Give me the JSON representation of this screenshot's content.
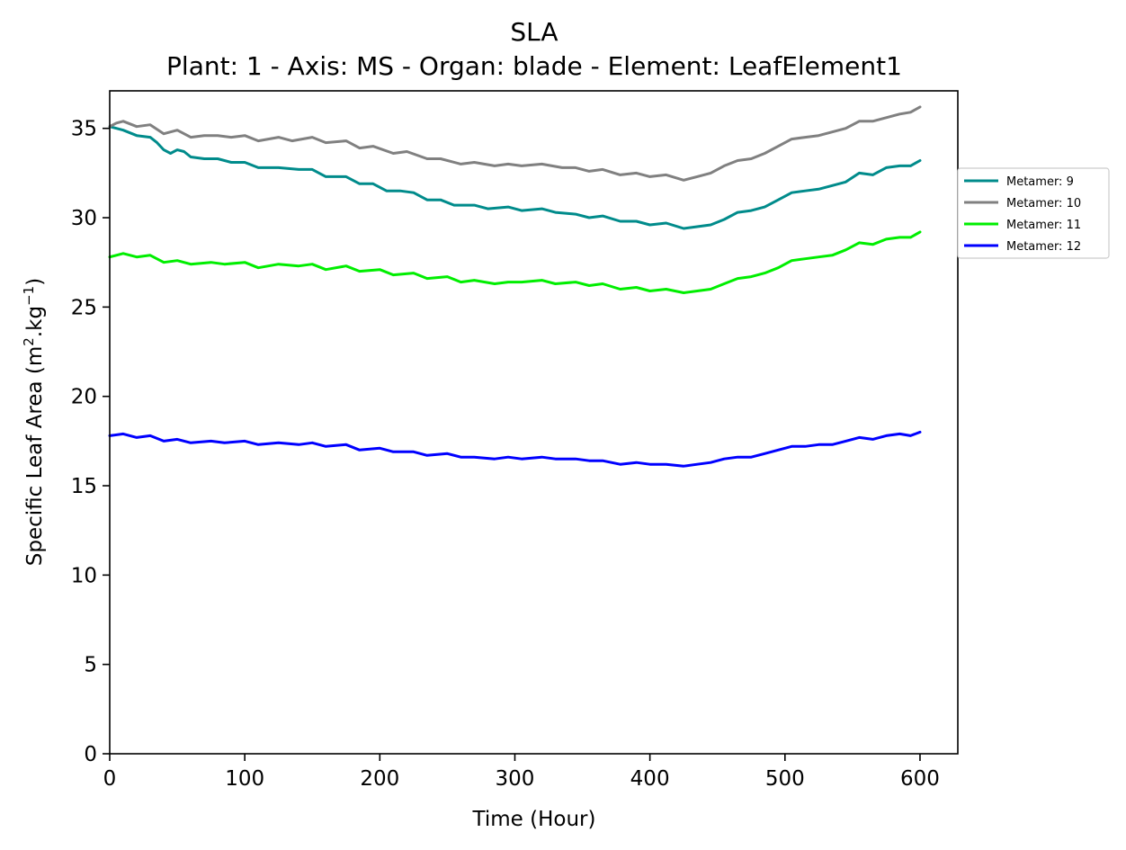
{
  "chart_data": {
    "type": "line",
    "title": "SLA",
    "subtitle": "Plant: 1 - Axis: MS - Organ: blade - Element: LeafElement1",
    "xlabel": "Time (Hour)",
    "ylabel_main": "Specific Leaf Area (m",
    "ylabel_sup1": "2",
    "ylabel_mid": ".kg",
    "ylabel_sup2": "−1",
    "ylabel_end": ")",
    "xlim": [
      0,
      628
    ],
    "ylim": [
      0,
      37.1
    ],
    "xticks": [
      0,
      100,
      200,
      300,
      400,
      500,
      600
    ],
    "yticks": [
      0,
      5,
      10,
      15,
      20,
      25,
      30,
      35
    ],
    "grid": false,
    "legend_position": "right",
    "series": [
      {
        "name": "Metamer: 9",
        "color": "#008b8b",
        "points": [
          [
            0,
            35.1
          ],
          [
            5,
            35.0
          ],
          [
            10,
            34.9
          ],
          [
            20,
            34.6
          ],
          [
            30,
            34.5
          ],
          [
            35,
            34.2
          ],
          [
            40,
            33.8
          ],
          [
            45,
            33.6
          ],
          [
            50,
            33.8
          ],
          [
            55,
            33.7
          ],
          [
            60,
            33.4
          ],
          [
            70,
            33.3
          ],
          [
            80,
            33.3
          ],
          [
            90,
            33.1
          ],
          [
            100,
            33.1
          ],
          [
            110,
            32.8
          ],
          [
            125,
            32.8
          ],
          [
            140,
            32.7
          ],
          [
            150,
            32.7
          ],
          [
            160,
            32.3
          ],
          [
            175,
            32.3
          ],
          [
            185,
            31.9
          ],
          [
            195,
            31.9
          ],
          [
            205,
            31.5
          ],
          [
            215,
            31.5
          ],
          [
            225,
            31.4
          ],
          [
            235,
            31.0
          ],
          [
            245,
            31.0
          ],
          [
            255,
            30.7
          ],
          [
            270,
            30.7
          ],
          [
            280,
            30.5
          ],
          [
            295,
            30.6
          ],
          [
            305,
            30.4
          ],
          [
            320,
            30.5
          ],
          [
            330,
            30.3
          ],
          [
            345,
            30.2
          ],
          [
            355,
            30.0
          ],
          [
            365,
            30.1
          ],
          [
            378,
            29.8
          ],
          [
            390,
            29.8
          ],
          [
            400,
            29.6
          ],
          [
            412,
            29.7
          ],
          [
            425,
            29.4
          ],
          [
            435,
            29.5
          ],
          [
            445,
            29.6
          ],
          [
            455,
            29.9
          ],
          [
            465,
            30.3
          ],
          [
            475,
            30.4
          ],
          [
            485,
            30.6
          ],
          [
            495,
            31.0
          ],
          [
            505,
            31.4
          ],
          [
            515,
            31.5
          ],
          [
            525,
            31.6
          ],
          [
            535,
            31.8
          ],
          [
            545,
            32.0
          ],
          [
            555,
            32.5
          ],
          [
            565,
            32.4
          ],
          [
            575,
            32.8
          ],
          [
            585,
            32.9
          ],
          [
            593,
            32.9
          ],
          [
            600,
            33.2
          ]
        ]
      },
      {
        "name": "Metamer: 10",
        "color": "#808080",
        "points": [
          [
            0,
            35.1
          ],
          [
            5,
            35.3
          ],
          [
            10,
            35.4
          ],
          [
            20,
            35.1
          ],
          [
            30,
            35.2
          ],
          [
            40,
            34.7
          ],
          [
            50,
            34.9
          ],
          [
            60,
            34.5
          ],
          [
            70,
            34.6
          ],
          [
            80,
            34.6
          ],
          [
            90,
            34.5
          ],
          [
            100,
            34.6
          ],
          [
            110,
            34.3
          ],
          [
            125,
            34.5
          ],
          [
            135,
            34.3
          ],
          [
            150,
            34.5
          ],
          [
            160,
            34.2
          ],
          [
            175,
            34.3
          ],
          [
            185,
            33.9
          ],
          [
            195,
            34.0
          ],
          [
            210,
            33.6
          ],
          [
            220,
            33.7
          ],
          [
            235,
            33.3
          ],
          [
            245,
            33.3
          ],
          [
            260,
            33.0
          ],
          [
            270,
            33.1
          ],
          [
            285,
            32.9
          ],
          [
            295,
            33.0
          ],
          [
            305,
            32.9
          ],
          [
            320,
            33.0
          ],
          [
            335,
            32.8
          ],
          [
            345,
            32.8
          ],
          [
            355,
            32.6
          ],
          [
            365,
            32.7
          ],
          [
            378,
            32.4
          ],
          [
            390,
            32.5
          ],
          [
            400,
            32.3
          ],
          [
            412,
            32.4
          ],
          [
            425,
            32.1
          ],
          [
            435,
            32.3
          ],
          [
            445,
            32.5
          ],
          [
            455,
            32.9
          ],
          [
            465,
            33.2
          ],
          [
            475,
            33.3
          ],
          [
            485,
            33.6
          ],
          [
            495,
            34.0
          ],
          [
            505,
            34.4
          ],
          [
            515,
            34.5
          ],
          [
            525,
            34.6
          ],
          [
            535,
            34.8
          ],
          [
            545,
            35.0
          ],
          [
            555,
            35.4
          ],
          [
            565,
            35.4
          ],
          [
            575,
            35.6
          ],
          [
            585,
            35.8
          ],
          [
            593,
            35.9
          ],
          [
            600,
            36.2
          ]
        ]
      },
      {
        "name": "Metamer: 11",
        "color": "#00ee00",
        "points": [
          [
            0,
            27.8
          ],
          [
            10,
            28.0
          ],
          [
            20,
            27.8
          ],
          [
            30,
            27.9
          ],
          [
            40,
            27.5
          ],
          [
            50,
            27.6
          ],
          [
            60,
            27.4
          ],
          [
            75,
            27.5
          ],
          [
            85,
            27.4
          ],
          [
            100,
            27.5
          ],
          [
            110,
            27.2
          ],
          [
            125,
            27.4
          ],
          [
            140,
            27.3
          ],
          [
            150,
            27.4
          ],
          [
            160,
            27.1
          ],
          [
            175,
            27.3
          ],
          [
            185,
            27.0
          ],
          [
            200,
            27.1
          ],
          [
            210,
            26.8
          ],
          [
            225,
            26.9
          ],
          [
            235,
            26.6
          ],
          [
            250,
            26.7
          ],
          [
            260,
            26.4
          ],
          [
            270,
            26.5
          ],
          [
            285,
            26.3
          ],
          [
            295,
            26.4
          ],
          [
            305,
            26.4
          ],
          [
            320,
            26.5
          ],
          [
            330,
            26.3
          ],
          [
            345,
            26.4
          ],
          [
            355,
            26.2
          ],
          [
            365,
            26.3
          ],
          [
            378,
            26.0
          ],
          [
            390,
            26.1
          ],
          [
            400,
            25.9
          ],
          [
            412,
            26.0
          ],
          [
            425,
            25.8
          ],
          [
            435,
            25.9
          ],
          [
            445,
            26.0
          ],
          [
            455,
            26.3
          ],
          [
            465,
            26.6
          ],
          [
            475,
            26.7
          ],
          [
            485,
            26.9
          ],
          [
            495,
            27.2
          ],
          [
            505,
            27.6
          ],
          [
            515,
            27.7
          ],
          [
            525,
            27.8
          ],
          [
            535,
            27.9
          ],
          [
            545,
            28.2
          ],
          [
            555,
            28.6
          ],
          [
            565,
            28.5
          ],
          [
            575,
            28.8
          ],
          [
            585,
            28.9
          ],
          [
            593,
            28.9
          ],
          [
            600,
            29.2
          ]
        ]
      },
      {
        "name": "Metamer: 12",
        "color": "#0000ff",
        "points": [
          [
            0,
            17.8
          ],
          [
            10,
            17.9
          ],
          [
            20,
            17.7
          ],
          [
            30,
            17.8
          ],
          [
            40,
            17.5
          ],
          [
            50,
            17.6
          ],
          [
            60,
            17.4
          ],
          [
            75,
            17.5
          ],
          [
            85,
            17.4
          ],
          [
            100,
            17.5
          ],
          [
            110,
            17.3
          ],
          [
            125,
            17.4
          ],
          [
            140,
            17.3
          ],
          [
            150,
            17.4
          ],
          [
            160,
            17.2
          ],
          [
            175,
            17.3
          ],
          [
            185,
            17.0
          ],
          [
            200,
            17.1
          ],
          [
            210,
            16.9
          ],
          [
            225,
            16.9
          ],
          [
            235,
            16.7
          ],
          [
            250,
            16.8
          ],
          [
            260,
            16.6
          ],
          [
            270,
            16.6
          ],
          [
            285,
            16.5
          ],
          [
            295,
            16.6
          ],
          [
            305,
            16.5
          ],
          [
            320,
            16.6
          ],
          [
            330,
            16.5
          ],
          [
            345,
            16.5
          ],
          [
            355,
            16.4
          ],
          [
            365,
            16.4
          ],
          [
            378,
            16.2
          ],
          [
            390,
            16.3
          ],
          [
            400,
            16.2
          ],
          [
            412,
            16.2
          ],
          [
            425,
            16.1
          ],
          [
            435,
            16.2
          ],
          [
            445,
            16.3
          ],
          [
            455,
            16.5
          ],
          [
            465,
            16.6
          ],
          [
            475,
            16.6
          ],
          [
            485,
            16.8
          ],
          [
            495,
            17.0
          ],
          [
            505,
            17.2
          ],
          [
            515,
            17.2
          ],
          [
            525,
            17.3
          ],
          [
            535,
            17.3
          ],
          [
            545,
            17.5
          ],
          [
            555,
            17.7
          ],
          [
            565,
            17.6
          ],
          [
            575,
            17.8
          ],
          [
            585,
            17.9
          ],
          [
            593,
            17.8
          ],
          [
            600,
            18.0
          ]
        ]
      }
    ]
  }
}
